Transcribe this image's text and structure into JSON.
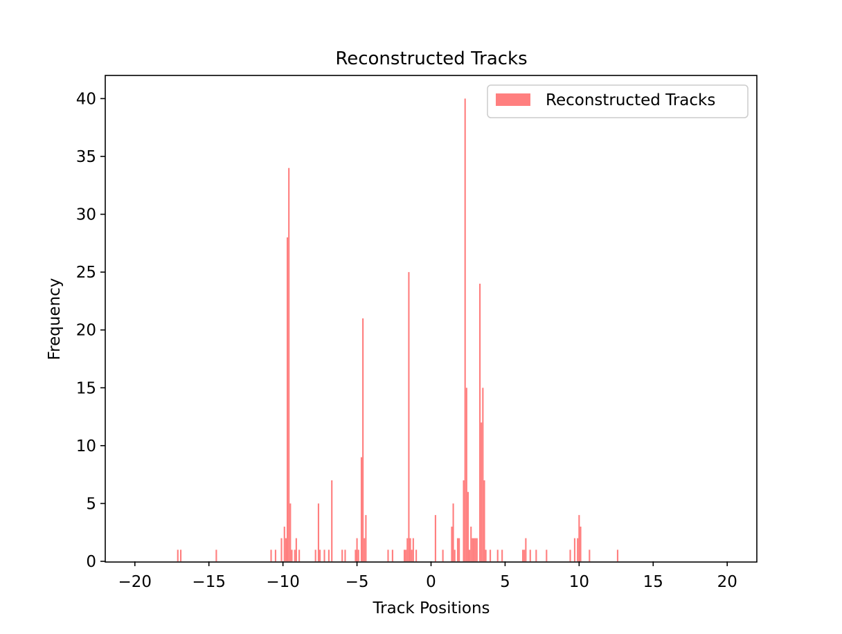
{
  "chart_data": {
    "type": "bar",
    "title": "Reconstructed Tracks",
    "xlabel": "Track Positions",
    "ylabel": "Frequency",
    "xlim": [
      -22,
      22
    ],
    "ylim": [
      0,
      42
    ],
    "xticks": [
      -20,
      -15,
      -10,
      -5,
      0,
      5,
      10,
      15,
      20
    ],
    "xtick_labels": [
      "−20",
      "−15",
      "−10",
      "−5",
      "0",
      "5",
      "10",
      "15",
      "20"
    ],
    "yticks": [
      0,
      5,
      10,
      15,
      20,
      25,
      30,
      35,
      40
    ],
    "ytick_labels": [
      "0",
      "5",
      "10",
      "15",
      "20",
      "25",
      "30",
      "35",
      "40"
    ],
    "grid": false,
    "legend_position": "top-right",
    "bin_width": 0.1,
    "series": [
      {
        "name": "Reconstructed Tracks",
        "color": "#ff7f7f",
        "bins": [
          [
            -17.1,
            1
          ],
          [
            -16.9,
            1
          ],
          [
            -14.5,
            1
          ],
          [
            -10.8,
            1
          ],
          [
            -10.5,
            1
          ],
          [
            -10.1,
            2
          ],
          [
            -9.9,
            3
          ],
          [
            -9.8,
            2
          ],
          [
            -9.7,
            28
          ],
          [
            -9.6,
            34
          ],
          [
            -9.5,
            5
          ],
          [
            -9.4,
            1
          ],
          [
            -9.2,
            1
          ],
          [
            -9.1,
            2
          ],
          [
            -8.9,
            1
          ],
          [
            -7.8,
            1
          ],
          [
            -7.6,
            5
          ],
          [
            -7.5,
            1
          ],
          [
            -7.2,
            1
          ],
          [
            -6.9,
            1
          ],
          [
            -6.7,
            7
          ],
          [
            -6.0,
            1
          ],
          [
            -5.8,
            1
          ],
          [
            -5.1,
            1
          ],
          [
            -5.0,
            2
          ],
          [
            -4.9,
            1
          ],
          [
            -4.7,
            9
          ],
          [
            -4.6,
            21
          ],
          [
            -4.5,
            2
          ],
          [
            -4.4,
            4
          ],
          [
            -2.9,
            1
          ],
          [
            -2.6,
            1
          ],
          [
            -1.8,
            1
          ],
          [
            -1.7,
            1
          ],
          [
            -1.6,
            2
          ],
          [
            -1.5,
            25
          ],
          [
            -1.4,
            2
          ],
          [
            -1.3,
            1
          ],
          [
            -1.2,
            2
          ],
          [
            -1.0,
            1
          ],
          [
            0.3,
            4
          ],
          [
            0.8,
            1
          ],
          [
            1.4,
            3
          ],
          [
            1.5,
            5
          ],
          [
            1.6,
            1
          ],
          [
            1.8,
            2
          ],
          [
            1.9,
            2
          ],
          [
            2.2,
            7
          ],
          [
            2.3,
            40
          ],
          [
            2.4,
            15
          ],
          [
            2.5,
            6
          ],
          [
            2.6,
            1
          ],
          [
            2.7,
            3
          ],
          [
            2.8,
            2
          ],
          [
            2.9,
            2
          ],
          [
            3.0,
            2
          ],
          [
            3.1,
            2
          ],
          [
            3.3,
            24
          ],
          [
            3.4,
            12
          ],
          [
            3.5,
            15
          ],
          [
            3.6,
            7
          ],
          [
            3.7,
            1
          ],
          [
            4.0,
            1
          ],
          [
            4.5,
            1
          ],
          [
            4.8,
            1
          ],
          [
            6.2,
            1
          ],
          [
            6.3,
            1
          ],
          [
            6.4,
            2
          ],
          [
            6.7,
            1
          ],
          [
            7.1,
            1
          ],
          [
            7.8,
            1
          ],
          [
            9.4,
            1
          ],
          [
            9.7,
            2
          ],
          [
            9.9,
            2
          ],
          [
            10.0,
            4
          ],
          [
            10.1,
            3
          ],
          [
            10.7,
            1
          ],
          [
            12.6,
            1
          ]
        ]
      }
    ]
  }
}
